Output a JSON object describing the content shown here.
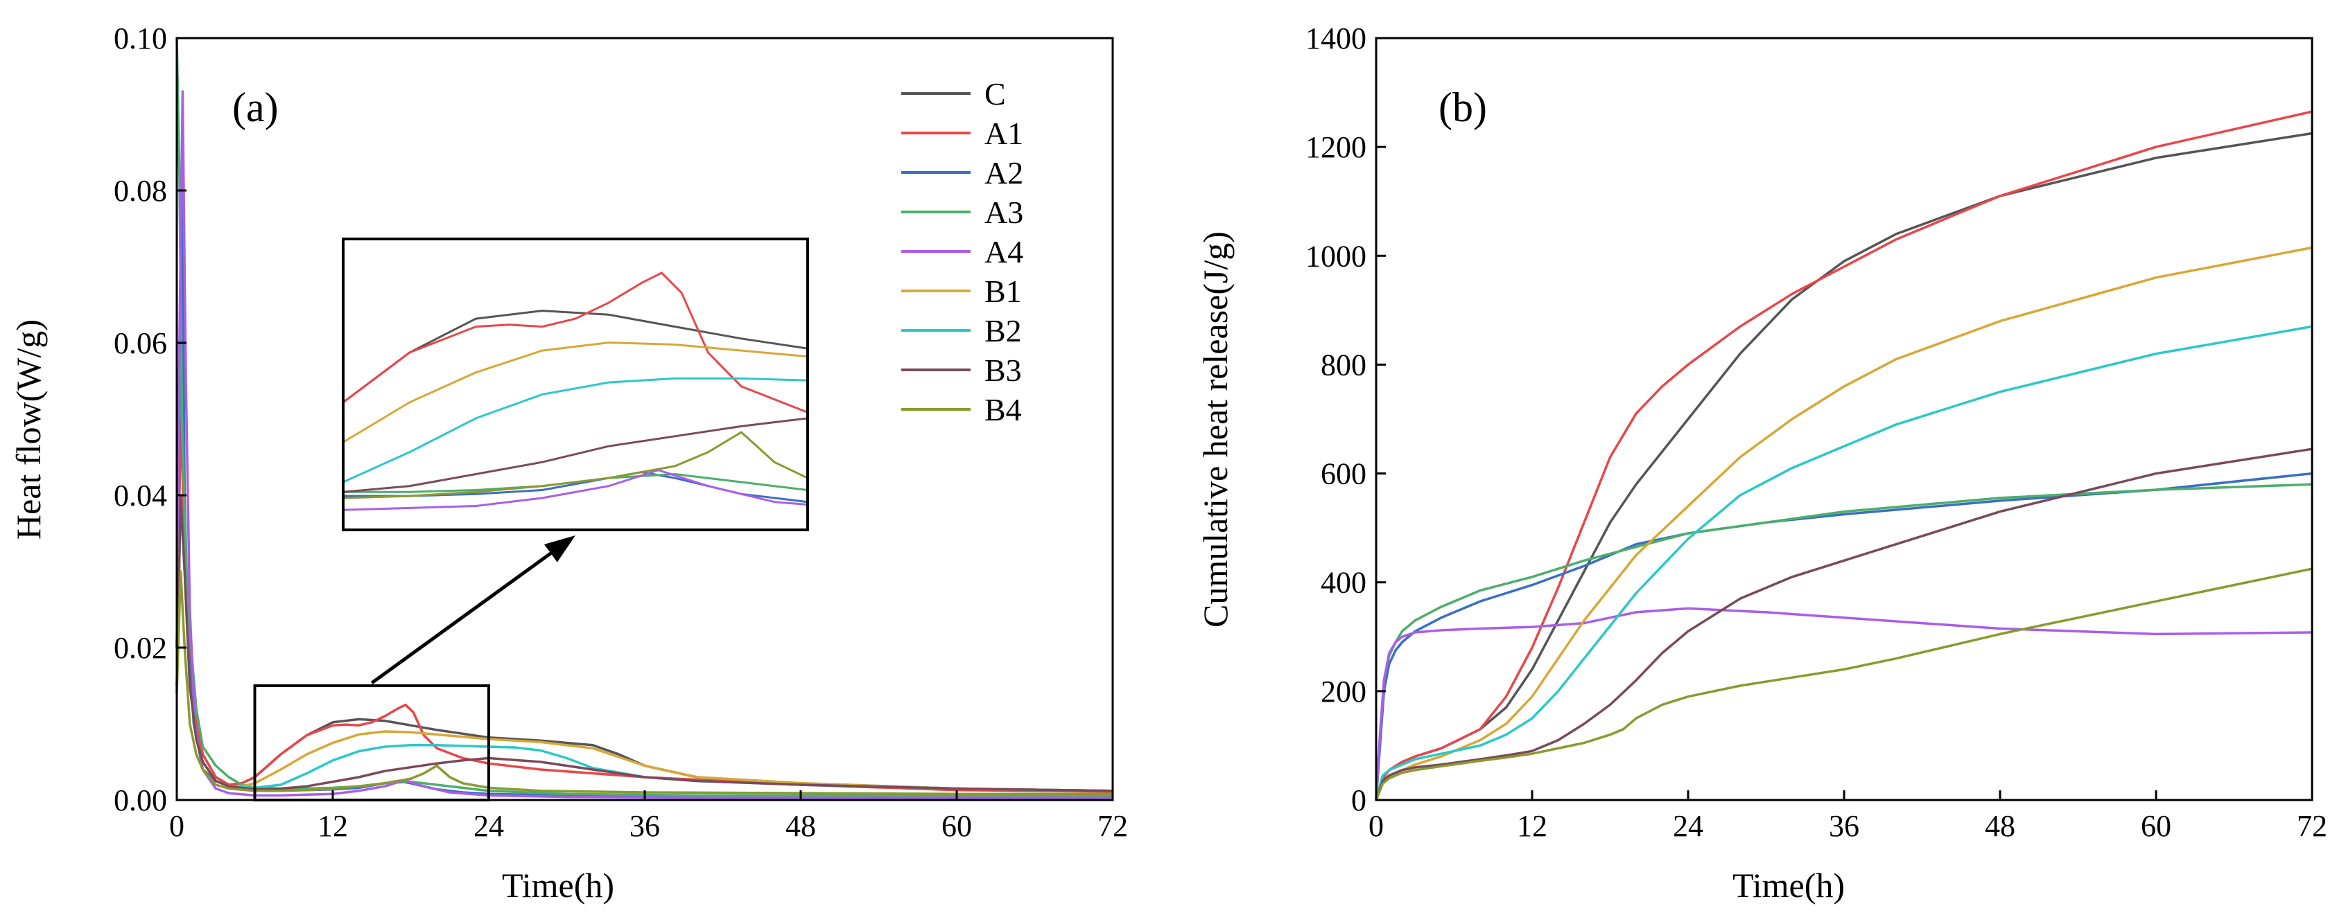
{
  "chart_data": [
    {
      "type": "line",
      "panel_label": "(a)",
      "xlabel": "Time(h)",
      "ylabel": "Heat flow(W/g)",
      "xlim": [
        0,
        72
      ],
      "ylim": [
        0,
        0.1
      ],
      "xticks": [
        "0",
        "12",
        "24",
        "36",
        "48",
        "60",
        "72"
      ],
      "yticks": [
        "0.00",
        "0.02",
        "0.04",
        "0.06",
        "0.08",
        "0.10"
      ],
      "legend": [
        "C",
        "A1",
        "A2",
        "A3",
        "A4",
        "B1",
        "B2",
        "B3",
        "B4"
      ],
      "legend_position": "top-right",
      "inset": {
        "zoom_x": [
          6,
          24
        ],
        "zoom_y": [
          0,
          0.015
        ]
      },
      "series": [
        {
          "name": "C",
          "color": "#555555",
          "x": [
            0,
            0.3,
            0.6,
            1.0,
            1.5,
            2,
            3,
            4,
            5,
            6,
            8,
            10,
            12,
            14,
            16,
            18,
            20,
            24,
            28,
            32,
            34,
            36,
            40,
            48,
            60,
            72
          ],
          "y": [
            0.02,
            0.05,
            0.035,
            0.018,
            0.01,
            0.006,
            0.003,
            0.002,
            0.0022,
            0.003,
            0.006,
            0.0085,
            0.0102,
            0.0106,
            0.0104,
            0.0098,
            0.0092,
            0.0082,
            0.0078,
            0.0072,
            0.006,
            0.0045,
            0.003,
            0.0022,
            0.0015,
            0.0012
          ]
        },
        {
          "name": "A1",
          "color": "#e8474b",
          "x": [
            0,
            0.3,
            0.6,
            1.0,
            1.5,
            2,
            3,
            4,
            5,
            6,
            8,
            10,
            12,
            13,
            14,
            15,
            16,
            17,
            17.6,
            18.2,
            19,
            20,
            22,
            24,
            28,
            36,
            48,
            60,
            72
          ],
          "y": [
            0.02,
            0.05,
            0.035,
            0.018,
            0.01,
            0.006,
            0.003,
            0.002,
            0.0022,
            0.003,
            0.006,
            0.0085,
            0.0098,
            0.0099,
            0.0098,
            0.0102,
            0.011,
            0.012,
            0.0125,
            0.0115,
            0.0085,
            0.0068,
            0.0055,
            0.0048,
            0.004,
            0.003,
            0.002,
            0.0013,
            0.0011
          ]
        },
        {
          "name": "A2",
          "color": "#3a6fc4",
          "x": [
            0,
            0.2,
            0.4,
            0.6,
            0.9,
            1.3,
            2,
            3,
            4,
            6,
            8,
            10,
            12,
            14,
            16,
            17,
            18,
            20,
            22,
            24,
            30,
            40,
            72
          ],
          "y": [
            0.014,
            0.05,
            0.084,
            0.04,
            0.02,
            0.01,
            0.004,
            0.0025,
            0.0018,
            0.0014,
            0.0013,
            0.0013,
            0.0014,
            0.0016,
            0.0022,
            0.0025,
            0.0022,
            0.0014,
            0.001,
            0.0008,
            0.0006,
            0.0005,
            0.0004
          ]
        },
        {
          "name": "A3",
          "color": "#4caf6a",
          "x": [
            0,
            0.2,
            0.4,
            0.7,
            1.0,
            1.5,
            2,
            3,
            4,
            5,
            6,
            8,
            10,
            12,
            14,
            16,
            18,
            20,
            24,
            30,
            40,
            72
          ],
          "y": [
            0.1,
            0.082,
            0.05,
            0.032,
            0.022,
            0.012,
            0.007,
            0.0045,
            0.003,
            0.002,
            0.0016,
            0.0015,
            0.0015,
            0.0016,
            0.0018,
            0.0022,
            0.0024,
            0.002,
            0.0012,
            0.0008,
            0.0006,
            0.0005
          ]
        },
        {
          "name": "A4",
          "color": "#a95ee8",
          "x": [
            0,
            0.2,
            0.45,
            0.7,
            1.0,
            1.4,
            2,
            3,
            4,
            6,
            8,
            10,
            12,
            14,
            16,
            17.5,
            19,
            21,
            24,
            30,
            40,
            72
          ],
          "y": [
            0.02,
            0.06,
            0.093,
            0.055,
            0.025,
            0.01,
            0.004,
            0.0015,
            0.0009,
            0.0006,
            0.0006,
            0.0007,
            0.0008,
            0.0012,
            0.0018,
            0.0026,
            0.0018,
            0.001,
            0.0006,
            0.0004,
            0.0003,
            0.0003
          ]
        },
        {
          "name": "B1",
          "color": "#d9a736",
          "x": [
            0,
            0.3,
            0.6,
            1.0,
            1.5,
            2,
            3,
            4,
            5,
            6,
            8,
            10,
            12,
            14,
            16,
            18,
            20,
            24,
            28,
            32,
            36,
            40,
            48,
            60,
            72
          ],
          "y": [
            0.015,
            0.04,
            0.03,
            0.015,
            0.008,
            0.005,
            0.0025,
            0.0018,
            0.0018,
            0.0022,
            0.004,
            0.006,
            0.0075,
            0.0086,
            0.009,
            0.0089,
            0.0086,
            0.008,
            0.0076,
            0.0068,
            0.0045,
            0.003,
            0.0022,
            0.0015,
            0.0012
          ]
        },
        {
          "name": "B2",
          "color": "#2cc8c8",
          "x": [
            0,
            0.3,
            0.6,
            1.0,
            1.5,
            2,
            3,
            4,
            6,
            8,
            10,
            12,
            14,
            16,
            18,
            20,
            22,
            24,
            26,
            28,
            30,
            32,
            36,
            40,
            48,
            60,
            72
          ],
          "y": [
            0.015,
            0.04,
            0.03,
            0.015,
            0.008,
            0.005,
            0.0025,
            0.0018,
            0.0016,
            0.002,
            0.0035,
            0.0052,
            0.0064,
            0.007,
            0.0072,
            0.0072,
            0.0071,
            0.007,
            0.0069,
            0.0065,
            0.0055,
            0.0042,
            0.003,
            0.0025,
            0.002,
            0.0015,
            0.0012
          ]
        },
        {
          "name": "B3",
          "color": "#7a4a5a",
          "x": [
            0,
            0.3,
            0.6,
            1.0,
            1.5,
            2,
            3,
            4,
            6,
            8,
            10,
            12,
            14,
            16,
            18,
            20,
            22,
            24,
            28,
            32,
            36,
            40,
            48,
            60,
            72
          ],
          "y": [
            0.015,
            0.04,
            0.03,
            0.015,
            0.008,
            0.005,
            0.0025,
            0.0018,
            0.0014,
            0.0015,
            0.0018,
            0.0024,
            0.003,
            0.0038,
            0.0043,
            0.0048,
            0.0052,
            0.0055,
            0.005,
            0.004,
            0.003,
            0.0025,
            0.002,
            0.0015,
            0.0012
          ]
        },
        {
          "name": "B4",
          "color": "#8a9a2e",
          "x": [
            0,
            0.3,
            0.6,
            1.0,
            1.5,
            2,
            3,
            4,
            6,
            8,
            10,
            12,
            14,
            16,
            18,
            19,
            20,
            21,
            22,
            24,
            28,
            36,
            48,
            60,
            72
          ],
          "y": [
            0.014,
            0.03,
            0.02,
            0.01,
            0.006,
            0.004,
            0.002,
            0.0015,
            0.0012,
            0.0012,
            0.0013,
            0.0015,
            0.0018,
            0.0022,
            0.0028,
            0.0035,
            0.0045,
            0.003,
            0.0022,
            0.0016,
            0.0012,
            0.001,
            0.0009,
            0.0008,
            0.0008
          ]
        }
      ]
    },
    {
      "type": "line",
      "panel_label": "(b)",
      "xlabel": "Time(h)",
      "ylabel": "Cumulative heat release(J/g)",
      "xlim": [
        0,
        72
      ],
      "ylim": [
        0,
        1400
      ],
      "xticks": [
        "0",
        "12",
        "24",
        "36",
        "48",
        "60",
        "72"
      ],
      "yticks": [
        "0",
        "200",
        "400",
        "600",
        "800",
        "1000",
        "1200",
        "1400"
      ],
      "series": [
        {
          "name": "C",
          "color": "#555555",
          "x": [
            0,
            0.5,
            1,
            2,
            3,
            5,
            8,
            10,
            12,
            14,
            16,
            18,
            20,
            24,
            28,
            32,
            36,
            40,
            48,
            60,
            72
          ],
          "y": [
            0,
            40,
            55,
            70,
            80,
            95,
            130,
            170,
            240,
            330,
            420,
            510,
            580,
            700,
            820,
            920,
            990,
            1040,
            1110,
            1180,
            1225
          ]
        },
        {
          "name": "A1",
          "color": "#e8474b",
          "x": [
            0,
            0.5,
            1,
            2,
            3,
            5,
            8,
            10,
            12,
            14,
            16,
            18,
            20,
            22,
            24,
            28,
            32,
            36,
            40,
            48,
            60,
            72
          ],
          "y": [
            0,
            40,
            55,
            70,
            80,
            95,
            130,
            190,
            280,
            390,
            510,
            630,
            710,
            760,
            800,
            870,
            930,
            980,
            1030,
            1110,
            1200,
            1265
          ]
        },
        {
          "name": "A2",
          "color": "#3a6fc4",
          "x": [
            0,
            0.3,
            0.6,
            1,
            1.5,
            2,
            3,
            5,
            8,
            12,
            16,
            20,
            24,
            30,
            36,
            48,
            60,
            72
          ],
          "y": [
            0,
            100,
            200,
            250,
            275,
            290,
            310,
            335,
            365,
            395,
            430,
            470,
            490,
            510,
            525,
            550,
            570,
            600
          ]
        },
        {
          "name": "A3",
          "color": "#4caf6a",
          "x": [
            0,
            0.3,
            0.6,
            1,
            1.5,
            2,
            3,
            5,
            8,
            12,
            16,
            20,
            24,
            30,
            36,
            48,
            60,
            72
          ],
          "y": [
            0,
            120,
            220,
            265,
            290,
            310,
            330,
            355,
            385,
            410,
            440,
            465,
            490,
            510,
            530,
            555,
            570,
            580
          ]
        },
        {
          "name": "A4",
          "color": "#a95ee8",
          "x": [
            0,
            0.3,
            0.6,
            1,
            1.5,
            2,
            3,
            5,
            8,
            12,
            16,
            20,
            24,
            30,
            36,
            48,
            60,
            72
          ],
          "y": [
            0,
            120,
            220,
            270,
            290,
            300,
            308,
            312,
            315,
            318,
            325,
            345,
            352,
            345,
            335,
            315,
            305,
            308
          ]
        },
        {
          "name": "B1",
          "color": "#d9a736",
          "x": [
            0,
            0.5,
            1,
            2,
            3,
            5,
            8,
            10,
            12,
            14,
            16,
            18,
            20,
            24,
            28,
            32,
            36,
            40,
            48,
            60,
            72
          ],
          "y": [
            0,
            30,
            45,
            55,
            65,
            80,
            110,
            140,
            190,
            260,
            330,
            390,
            450,
            540,
            630,
            700,
            760,
            810,
            880,
            960,
            1015
          ]
        },
        {
          "name": "B2",
          "color": "#2cc8c8",
          "x": [
            0,
            0.5,
            1,
            2,
            3,
            5,
            8,
            10,
            12,
            14,
            16,
            18,
            20,
            22,
            24,
            28,
            32,
            36,
            40,
            48,
            60,
            72
          ],
          "y": [
            0,
            45,
            55,
            65,
            75,
            85,
            100,
            120,
            150,
            200,
            260,
            320,
            380,
            430,
            480,
            560,
            610,
            650,
            690,
            750,
            820,
            870
          ]
        },
        {
          "name": "B3",
          "color": "#7a4a5a",
          "x": [
            0,
            0.5,
            1,
            2,
            3,
            5,
            8,
            10,
            12,
            14,
            16,
            18,
            20,
            22,
            24,
            28,
            32,
            36,
            40,
            48,
            60,
            72
          ],
          "y": [
            0,
            35,
            45,
            55,
            60,
            65,
            75,
            82,
            90,
            110,
            140,
            175,
            220,
            270,
            310,
            370,
            410,
            440,
            470,
            530,
            600,
            645
          ]
        },
        {
          "name": "B4",
          "color": "#8a9a2e",
          "x": [
            0,
            0.5,
            1,
            2,
            3,
            5,
            8,
            10,
            12,
            14,
            16,
            18,
            19,
            20,
            22,
            24,
            28,
            32,
            36,
            40,
            48,
            60,
            72
          ],
          "y": [
            0,
            30,
            40,
            50,
            55,
            62,
            72,
            78,
            85,
            95,
            105,
            120,
            130,
            150,
            175,
            190,
            210,
            225,
            240,
            260,
            305,
            365,
            425
          ]
        }
      ]
    }
  ]
}
